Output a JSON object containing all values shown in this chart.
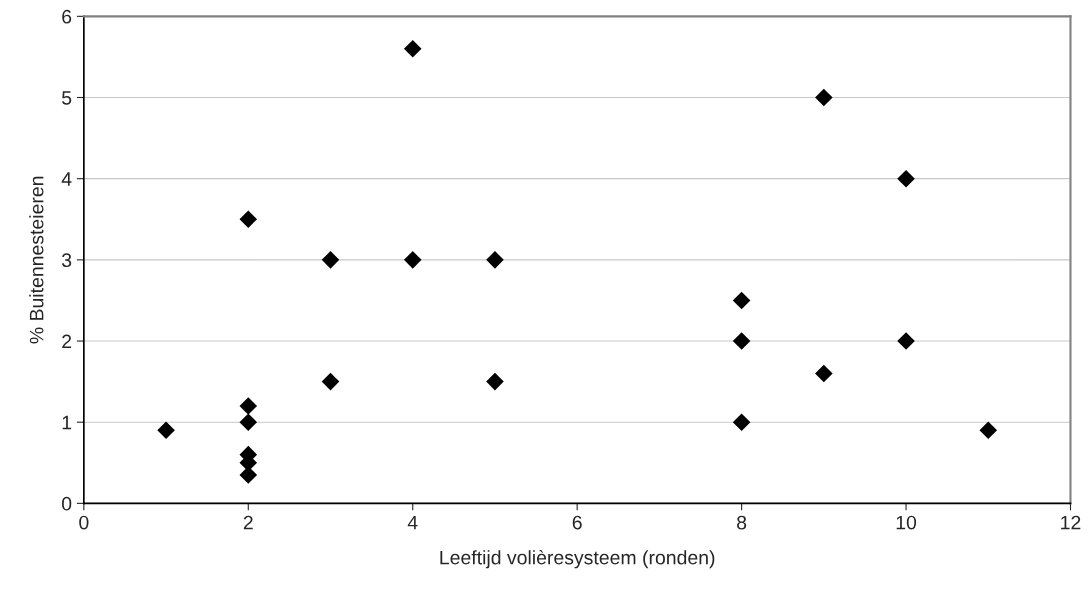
{
  "chart_data": {
    "type": "scatter",
    "xlabel": "Leeftijd volièresysteem (ronden)",
    "ylabel": "% Buitennesteieren",
    "x": [
      1,
      2,
      2,
      2,
      2,
      2,
      2,
      3,
      3,
      4,
      4,
      5,
      5,
      8,
      8,
      8,
      9,
      9,
      10,
      10,
      11
    ],
    "series": [
      {
        "color": "#000000",
        "values": [
          0.9,
          3.5,
          1.2,
          1.0,
          0.6,
          0.5,
          0.35,
          3,
          1.5,
          5.6,
          3,
          3,
          1.5,
          2.5,
          2,
          1,
          5,
          1.6,
          4,
          2,
          0.9
        ]
      }
    ],
    "marker": "diamond",
    "xlim": [
      0,
      12
    ],
    "xticks": [
      0,
      2,
      4,
      6,
      8,
      10,
      12
    ],
    "ylim": [
      0,
      6
    ],
    "yticks": [
      0,
      1,
      2,
      3,
      4,
      5,
      6
    ],
    "grid": "y"
  }
}
